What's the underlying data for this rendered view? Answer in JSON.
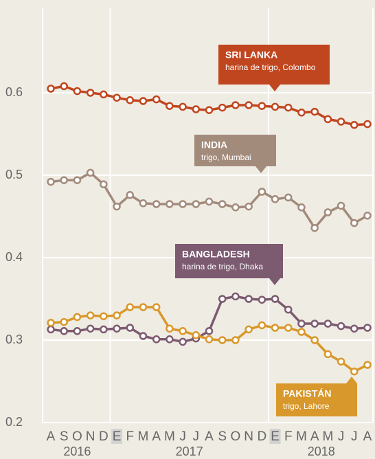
{
  "chart_data": {
    "type": "line",
    "categories": [
      "A",
      "S",
      "O",
      "N",
      "D",
      "E",
      "F",
      "M",
      "A",
      "M",
      "J",
      "J",
      "A",
      "S",
      "O",
      "N",
      "D",
      "E",
      "F",
      "M",
      "A",
      "M",
      "J",
      "J",
      "A"
    ],
    "years": [
      "2016",
      "2017",
      "2018"
    ],
    "ylim": [
      0.2,
      0.7
    ],
    "yticks": [
      0.2,
      0.3,
      0.4,
      0.5,
      0.6
    ],
    "grid": true,
    "series": [
      {
        "name": "SRI LANKA",
        "note": "harina de trigo, Colombo",
        "color": "#c0461f",
        "values": [
          0.605,
          0.608,
          0.602,
          0.6,
          0.598,
          0.594,
          0.591,
          0.59,
          0.592,
          0.584,
          0.583,
          0.58,
          0.579,
          0.582,
          0.585,
          0.585,
          0.584,
          0.583,
          0.582,
          0.576,
          0.577,
          0.568,
          0.565,
          0.561,
          0.562
        ]
      },
      {
        "name": "INDIA",
        "note": "trigo, Mumbai",
        "color": "#a38b7c",
        "values": [
          0.492,
          0.494,
          0.494,
          0.503,
          0.489,
          0.462,
          0.476,
          0.466,
          0.465,
          0.465,
          0.465,
          0.465,
          0.468,
          0.465,
          0.461,
          0.462,
          0.48,
          0.471,
          0.473,
          0.461,
          0.436,
          0.455,
          0.463,
          0.442,
          0.451
        ]
      },
      {
        "name": "BANGLADESH",
        "note": "harina de trigo, Dhaka",
        "color": "#7c5a70",
        "values": [
          0.313,
          0.311,
          0.311,
          0.314,
          0.313,
          0.314,
          0.315,
          0.305,
          0.301,
          0.301,
          0.298,
          0.302,
          0.311,
          0.35,
          0.353,
          0.35,
          0.349,
          0.35,
          0.337,
          0.32,
          0.32,
          0.32,
          0.317,
          0.314,
          0.315
        ]
      },
      {
        "name": "PAKISTÁN",
        "note": "trigo, Lahore",
        "color": "#d9982b",
        "values": [
          0.321,
          0.322,
          0.328,
          0.33,
          0.329,
          0.33,
          0.34,
          0.34,
          0.34,
          0.314,
          0.311,
          0.306,
          0.301,
          0.3,
          0.3,
          0.313,
          0.318,
          0.315,
          0.315,
          0.31,
          0.3,
          0.283,
          0.274,
          0.262,
          0.27
        ]
      }
    ]
  }
}
